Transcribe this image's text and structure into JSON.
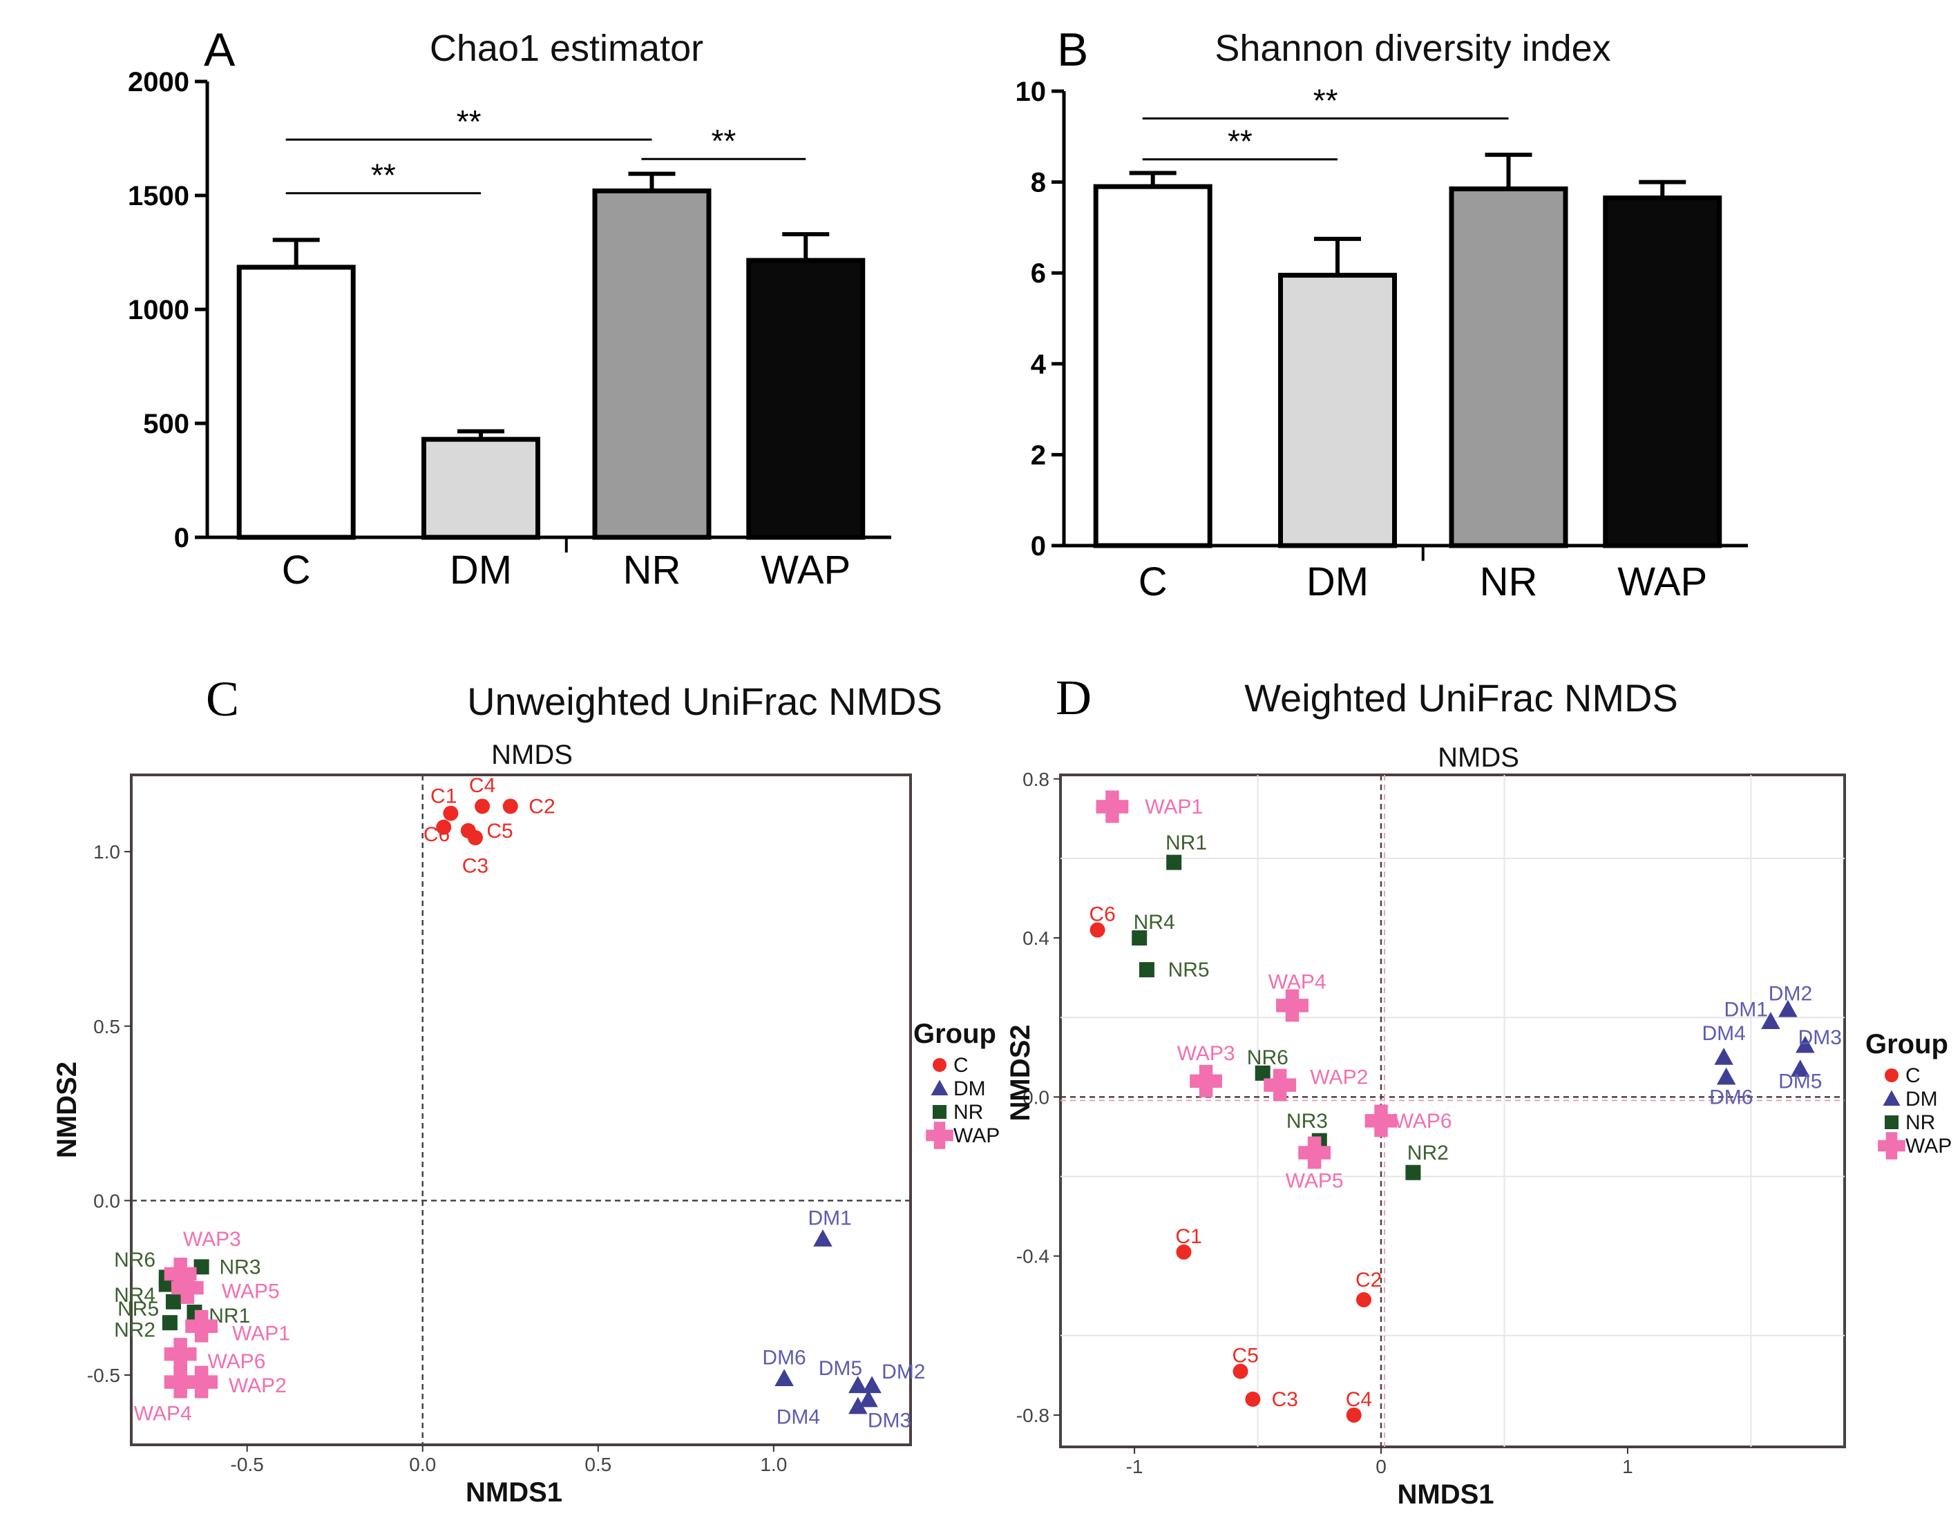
{
  "chart_data": [
    {
      "id": "A",
      "type": "bar",
      "panel_label": "A",
      "title": "Chao1 estimator",
      "categories": [
        "C",
        "DM",
        "NR",
        "WAP"
      ],
      "values": [
        1185,
        430,
        1520,
        1215
      ],
      "errors": [
        120,
        35,
        75,
        115
      ],
      "colors": [
        "#ffffff",
        "#d9d9d9",
        "#9b9b9b",
        "#0a0a0a"
      ],
      "ylim": [
        0,
        2000
      ],
      "yticks": [
        0,
        500,
        1000,
        1500,
        2000
      ],
      "ytick_labels": [
        "0",
        "500",
        "1000",
        "1500",
        "2000"
      ],
      "significance": [
        {
          "from": "C",
          "to": "DM",
          "label": "**",
          "y": 1510
        },
        {
          "from": "C",
          "to": "NR",
          "label": "**",
          "y": 1745
        },
        {
          "from": "NR",
          "to": "WAP",
          "label": "**",
          "y": 1660
        }
      ]
    },
    {
      "id": "B",
      "type": "bar",
      "panel_label": "B",
      "title": "Shannon diversity index",
      "categories": [
        "C",
        "DM",
        "NR",
        "WAP"
      ],
      "values": [
        7.9,
        5.95,
        7.85,
        7.65
      ],
      "errors": [
        0.3,
        0.8,
        0.75,
        0.35
      ],
      "colors": [
        "#ffffff",
        "#d9d9d9",
        "#9b9b9b",
        "#0a0a0a"
      ],
      "ylim": [
        0,
        10
      ],
      "yticks": [
        0,
        2,
        4,
        6,
        8,
        10
      ],
      "ytick_labels": [
        "0",
        "2",
        "4",
        "6",
        "8",
        "10"
      ],
      "significance": [
        {
          "from": "C",
          "to": "DM",
          "label": "**",
          "y": 8.5
        },
        {
          "from": "C",
          "to": "NR",
          "label": "**",
          "y": 9.4
        }
      ]
    },
    {
      "id": "C",
      "type": "scatter",
      "panel_label": "C",
      "title": "Unweighted UniFrac NMDS",
      "subtitle": "NMDS",
      "xlabel": "NMDS1",
      "ylabel": "NMDS2",
      "xlim": [
        -0.83,
        1.39
      ],
      "ylim": [
        -0.7,
        1.22
      ],
      "xticks": [
        -0.5,
        0.0,
        0.5,
        1.0
      ],
      "xtick_labels": [
        "-0.5",
        "0.0",
        "0.5",
        "1.0"
      ],
      "yticks": [
        -0.5,
        0.0,
        0.5,
        1.0
      ],
      "ytick_labels": [
        "-0.5",
        "0.0",
        "0.5",
        "1.0"
      ],
      "legend": {
        "title": "Group",
        "entries": [
          "C",
          "DM",
          "NR",
          "WAP"
        ]
      },
      "points": [
        {
          "label": "C1",
          "group": "C",
          "x": 0.08,
          "y": 1.11,
          "ldx": -0.02,
          "ldy": 0.05
        },
        {
          "label": "C4",
          "group": "C",
          "x": 0.17,
          "y": 1.13,
          "ldx": 0.0,
          "ldy": 0.06
        },
        {
          "label": "C2",
          "group": "C",
          "x": 0.25,
          "y": 1.13,
          "ldx": 0.09,
          "ldy": 0.0
        },
        {
          "label": "C6",
          "group": "C",
          "x": 0.06,
          "y": 1.07,
          "ldx": -0.02,
          "ldy": -0.02
        },
        {
          "label": "C5",
          "group": "C",
          "x": 0.13,
          "y": 1.06,
          "ldx": 0.09,
          "ldy": 0.0
        },
        {
          "label": "C3",
          "group": "C",
          "x": 0.15,
          "y": 1.04,
          "ldx": 0.0,
          "ldy": -0.08
        },
        {
          "label": "DM1",
          "group": "DM",
          "x": 1.14,
          "y": -0.11,
          "ldx": 0.02,
          "ldy": 0.06
        },
        {
          "label": "DM6",
          "group": "DM",
          "x": 1.03,
          "y": -0.51,
          "ldx": 0.0,
          "ldy": 0.06
        },
        {
          "label": "DM5",
          "group": "DM",
          "x": 1.24,
          "y": -0.53,
          "ldx": -0.05,
          "ldy": 0.05
        },
        {
          "label": "DM2",
          "group": "DM",
          "x": 1.28,
          "y": -0.53,
          "ldx": 0.09,
          "ldy": 0.04
        },
        {
          "label": "DM4",
          "group": "DM",
          "x": 1.24,
          "y": -0.59,
          "ldx": -0.17,
          "ldy": -0.03
        },
        {
          "label": "DM3",
          "group": "DM",
          "x": 1.27,
          "y": -0.57,
          "ldx": 0.06,
          "ldy": -0.06
        },
        {
          "label": "NR6",
          "group": "NR",
          "x": -0.73,
          "y": -0.22,
          "ldx": -0.09,
          "ldy": 0.05
        },
        {
          "label": "NR3",
          "group": "NR",
          "x": -0.63,
          "y": -0.19,
          "ldx": 0.11,
          "ldy": 0.0
        },
        {
          "label": "NR4",
          "group": "NR",
          "x": -0.73,
          "y": -0.24,
          "ldx": -0.09,
          "ldy": -0.03
        },
        {
          "label": "NR5",
          "group": "NR",
          "x": -0.71,
          "y": -0.29,
          "ldx": -0.1,
          "ldy": -0.02
        },
        {
          "label": "NR1",
          "group": "NR",
          "x": -0.65,
          "y": -0.32,
          "ldx": 0.1,
          "ldy": -0.01
        },
        {
          "label": "NR2",
          "group": "NR",
          "x": -0.72,
          "y": -0.35,
          "ldx": -0.1,
          "ldy": -0.02
        },
        {
          "label": "WAP3",
          "group": "WAP",
          "x": -0.69,
          "y": -0.21,
          "ldx": 0.09,
          "ldy": 0.1
        },
        {
          "label": "WAP5",
          "group": "WAP",
          "x": -0.67,
          "y": -0.25,
          "ldx": 0.18,
          "ldy": -0.01
        },
        {
          "label": "WAP1",
          "group": "WAP",
          "x": -0.63,
          "y": -0.36,
          "ldx": 0.17,
          "ldy": -0.02
        },
        {
          "label": "WAP6",
          "group": "WAP",
          "x": -0.69,
          "y": -0.44,
          "ldx": 0.16,
          "ldy": -0.02
        },
        {
          "label": "WAP2",
          "group": "WAP",
          "x": -0.63,
          "y": -0.52,
          "ldx": 0.16,
          "ldy": -0.01
        },
        {
          "label": "WAP4",
          "group": "WAP",
          "x": -0.69,
          "y": -0.52,
          "ldx": -0.05,
          "ldy": -0.09
        }
      ]
    },
    {
      "id": "D",
      "type": "scatter",
      "panel_label": "D",
      "title": "Weighted UniFrac NMDS",
      "subtitle": "NMDS",
      "xlabel": "NMDS1",
      "ylabel": "NMDS2",
      "xlim": [
        -1.3,
        1.88
      ],
      "ylim": [
        -0.88,
        0.81
      ],
      "xticks": [
        -1,
        0,
        1
      ],
      "xtick_labels": [
        "-1",
        "0",
        "1"
      ],
      "yticks": [
        -0.8,
        -0.4,
        0.0,
        0.4,
        0.8
      ],
      "ytick_labels": [
        "-0.8",
        "-0.4",
        "0.0",
        "0.4",
        "0.8"
      ],
      "legend": {
        "title": "Group",
        "entries": [
          "C",
          "DM",
          "NR",
          "WAP"
        ]
      },
      "points": [
        {
          "label": "C6",
          "group": "C",
          "x": -1.15,
          "y": 0.42,
          "ldx": 0.02,
          "ldy": 0.04
        },
        {
          "label": "C1",
          "group": "C",
          "x": -0.8,
          "y": -0.39,
          "ldx": 0.02,
          "ldy": 0.04
        },
        {
          "label": "C2",
          "group": "C",
          "x": -0.07,
          "y": -0.51,
          "ldx": 0.02,
          "ldy": 0.05
        },
        {
          "label": "C5",
          "group": "C",
          "x": -0.57,
          "y": -0.69,
          "ldx": 0.02,
          "ldy": 0.04
        },
        {
          "label": "C3",
          "group": "C",
          "x": -0.52,
          "y": -0.76,
          "ldx": 0.13,
          "ldy": 0.0
        },
        {
          "label": "C4",
          "group": "C",
          "x": -0.11,
          "y": -0.8,
          "ldx": 0.02,
          "ldy": 0.04
        },
        {
          "label": "DM2",
          "group": "DM",
          "x": 1.65,
          "y": 0.22,
          "ldx": 0.01,
          "ldy": 0.04
        },
        {
          "label": "DM1",
          "group": "DM",
          "x": 1.58,
          "y": 0.19,
          "ldx": -0.1,
          "ldy": 0.03
        },
        {
          "label": "DM3",
          "group": "DM",
          "x": 1.72,
          "y": 0.13,
          "ldx": 0.06,
          "ldy": 0.02
        },
        {
          "label": "DM4",
          "group": "DM",
          "x": 1.39,
          "y": 0.1,
          "ldx": 0.0,
          "ldy": 0.06
        },
        {
          "label": "DM5",
          "group": "DM",
          "x": 1.7,
          "y": 0.07,
          "ldx": 0.0,
          "ldy": -0.03
        },
        {
          "label": "DM6",
          "group": "DM",
          "x": 1.4,
          "y": 0.05,
          "ldx": 0.02,
          "ldy": -0.05
        },
        {
          "label": "NR1",
          "group": "NR",
          "x": -0.84,
          "y": 0.59,
          "ldx": 0.05,
          "ldy": 0.05
        },
        {
          "label": "NR4",
          "group": "NR",
          "x": -0.98,
          "y": 0.4,
          "ldx": 0.06,
          "ldy": 0.04
        },
        {
          "label": "NR5",
          "group": "NR",
          "x": -0.95,
          "y": 0.32,
          "ldx": 0.17,
          "ldy": 0.0
        },
        {
          "label": "NR6",
          "group": "NR",
          "x": -0.48,
          "y": 0.06,
          "ldx": 0.02,
          "ldy": 0.04
        },
        {
          "label": "NR3",
          "group": "NR",
          "x": -0.25,
          "y": -0.11,
          "ldx": -0.05,
          "ldy": 0.05
        },
        {
          "label": "NR2",
          "group": "NR",
          "x": 0.13,
          "y": -0.19,
          "ldx": 0.06,
          "ldy": 0.05
        },
        {
          "label": "WAP1",
          "group": "WAP",
          "x": -1.09,
          "y": 0.73,
          "ldx": 0.25,
          "ldy": 0.0
        },
        {
          "label": "WAP4",
          "group": "WAP",
          "x": -0.36,
          "y": 0.23,
          "ldx": 0.02,
          "ldy": 0.06
        },
        {
          "label": "WAP3",
          "group": "WAP",
          "x": -0.71,
          "y": 0.04,
          "ldx": 0.0,
          "ldy": 0.07
        },
        {
          "label": "WAP2",
          "group": "WAP",
          "x": -0.41,
          "y": 0.03,
          "ldx": 0.24,
          "ldy": 0.02
        },
        {
          "label": "WAP6",
          "group": "WAP",
          "x": 0.0,
          "y": -0.06,
          "ldx": 0.17,
          "ldy": 0.0
        },
        {
          "label": "WAP5",
          "group": "WAP",
          "x": -0.27,
          "y": -0.14,
          "ldx": 0.0,
          "ldy": -0.07
        }
      ]
    }
  ],
  "group_colors": {
    "C": "#ee2a24",
    "DM": "#3f3f95",
    "NR": "#1d4f24",
    "WAP": "#f26fb0"
  },
  "group_label_colors": {
    "C": "#ee2a24",
    "DM": "#5c5cb0",
    "NR": "#3d6030",
    "WAP": "#f26fb0"
  }
}
